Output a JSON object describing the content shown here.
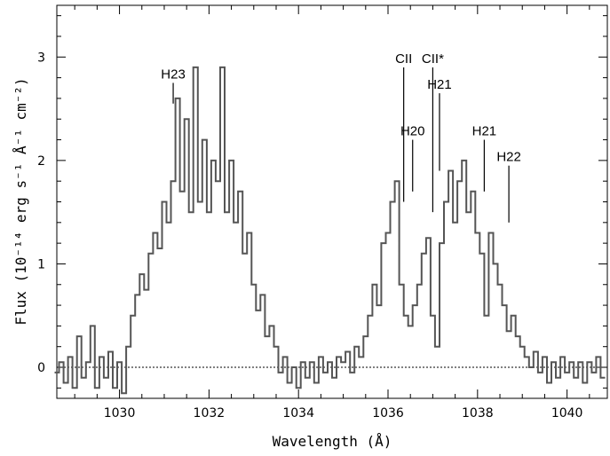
{
  "chart_data": {
    "type": "line",
    "title": "",
    "xlabel": "Wavelength (Å)",
    "ylabel": "Flux (10⁻¹⁴ erg s⁻¹ Å⁻¹ cm⁻²)",
    "xlim": [
      1028.6,
      1040.9
    ],
    "ylim": [
      -0.3,
      3.5
    ],
    "x_ticks": [
      1030,
      1032,
      1034,
      1036,
      1038,
      1040
    ],
    "y_ticks": [
      0,
      1,
      2,
      3
    ],
    "zero_line": 0,
    "grid": false,
    "series": [
      {
        "style": "histogram-step",
        "points": [
          [
            1028.6,
            -0.05
          ],
          [
            1028.7,
            0.05
          ],
          [
            1028.8,
            -0.15
          ],
          [
            1028.9,
            0.1
          ],
          [
            1029.0,
            -0.2
          ],
          [
            1029.1,
            0.3
          ],
          [
            1029.2,
            -0.1
          ],
          [
            1029.3,
            0.05
          ],
          [
            1029.4,
            0.4
          ],
          [
            1029.5,
            -0.2
          ],
          [
            1029.6,
            0.1
          ],
          [
            1029.7,
            -0.1
          ],
          [
            1029.8,
            0.15
          ],
          [
            1029.9,
            -0.2
          ],
          [
            1030.0,
            0.05
          ],
          [
            1030.1,
            -0.25
          ],
          [
            1030.2,
            0.2
          ],
          [
            1030.3,
            0.5
          ],
          [
            1030.4,
            0.7
          ],
          [
            1030.5,
            0.9
          ],
          [
            1030.6,
            0.75
          ],
          [
            1030.7,
            1.1
          ],
          [
            1030.8,
            1.3
          ],
          [
            1030.9,
            1.15
          ],
          [
            1031.0,
            1.6
          ],
          [
            1031.1,
            1.4
          ],
          [
            1031.2,
            1.8
          ],
          [
            1031.3,
            2.6
          ],
          [
            1031.4,
            1.7
          ],
          [
            1031.5,
            2.4
          ],
          [
            1031.6,
            1.5
          ],
          [
            1031.7,
            2.9
          ],
          [
            1031.8,
            1.6
          ],
          [
            1031.9,
            2.2
          ],
          [
            1032.0,
            1.5
          ],
          [
            1032.1,
            2.0
          ],
          [
            1032.2,
            1.8
          ],
          [
            1032.3,
            2.9
          ],
          [
            1032.4,
            1.5
          ],
          [
            1032.5,
            2.0
          ],
          [
            1032.6,
            1.4
          ],
          [
            1032.7,
            1.7
          ],
          [
            1032.8,
            1.1
          ],
          [
            1032.9,
            1.3
          ],
          [
            1033.0,
            0.8
          ],
          [
            1033.1,
            0.55
          ],
          [
            1033.2,
            0.7
          ],
          [
            1033.3,
            0.3
          ],
          [
            1033.4,
            0.4
          ],
          [
            1033.5,
            0.2
          ],
          [
            1033.6,
            -0.05
          ],
          [
            1033.7,
            0.1
          ],
          [
            1033.8,
            -0.15
          ],
          [
            1033.9,
            0.0
          ],
          [
            1034.0,
            -0.2
          ],
          [
            1034.1,
            0.05
          ],
          [
            1034.2,
            -0.1
          ],
          [
            1034.3,
            0.05
          ],
          [
            1034.4,
            -0.15
          ],
          [
            1034.5,
            0.1
          ],
          [
            1034.6,
            -0.05
          ],
          [
            1034.7,
            0.05
          ],
          [
            1034.8,
            -0.1
          ],
          [
            1034.9,
            0.1
          ],
          [
            1035.0,
            0.05
          ],
          [
            1035.1,
            0.15
          ],
          [
            1035.2,
            -0.05
          ],
          [
            1035.3,
            0.2
          ],
          [
            1035.4,
            0.1
          ],
          [
            1035.5,
            0.3
          ],
          [
            1035.6,
            0.5
          ],
          [
            1035.7,
            0.8
          ],
          [
            1035.8,
            0.6
          ],
          [
            1035.9,
            1.2
          ],
          [
            1036.0,
            1.3
          ],
          [
            1036.1,
            1.6
          ],
          [
            1036.2,
            1.8
          ],
          [
            1036.3,
            0.8
          ],
          [
            1036.4,
            0.5
          ],
          [
            1036.5,
            0.4
          ],
          [
            1036.6,
            0.6
          ],
          [
            1036.7,
            0.8
          ],
          [
            1036.8,
            1.1
          ],
          [
            1036.9,
            1.25
          ],
          [
            1037.0,
            0.5
          ],
          [
            1037.1,
            0.2
          ],
          [
            1037.2,
            1.2
          ],
          [
            1037.3,
            1.6
          ],
          [
            1037.4,
            1.9
          ],
          [
            1037.5,
            1.4
          ],
          [
            1037.6,
            1.8
          ],
          [
            1037.7,
            2.0
          ],
          [
            1037.8,
            1.5
          ],
          [
            1037.9,
            1.7
          ],
          [
            1038.0,
            1.3
          ],
          [
            1038.1,
            1.1
          ],
          [
            1038.2,
            0.5
          ],
          [
            1038.3,
            1.3
          ],
          [
            1038.4,
            1.0
          ],
          [
            1038.5,
            0.8
          ],
          [
            1038.6,
            0.6
          ],
          [
            1038.7,
            0.35
          ],
          [
            1038.8,
            0.5
          ],
          [
            1038.9,
            0.3
          ],
          [
            1039.0,
            0.2
          ],
          [
            1039.1,
            0.1
          ],
          [
            1039.2,
            0.0
          ],
          [
            1039.3,
            0.15
          ],
          [
            1039.4,
            -0.05
          ],
          [
            1039.5,
            0.1
          ],
          [
            1039.6,
            -0.15
          ],
          [
            1039.7,
            0.05
          ],
          [
            1039.8,
            -0.1
          ],
          [
            1039.9,
            0.1
          ],
          [
            1040.0,
            -0.05
          ],
          [
            1040.1,
            0.05
          ],
          [
            1040.2,
            -0.1
          ],
          [
            1040.3,
            0.05
          ],
          [
            1040.4,
            -0.15
          ],
          [
            1040.5,
            0.05
          ],
          [
            1040.6,
            -0.05
          ],
          [
            1040.7,
            0.1
          ],
          [
            1040.8,
            -0.1
          ]
        ]
      }
    ],
    "annotations": [
      {
        "label": "H23",
        "x": 1031.2,
        "tick_top": 2.75,
        "tick_bottom": 2.55
      },
      {
        "label": "CII",
        "x": 1036.35,
        "tick_top": 2.9,
        "tick_bottom": 1.6
      },
      {
        "label": "CII*",
        "x": 1037.0,
        "tick_top": 2.9,
        "tick_bottom": 1.5
      },
      {
        "label": "H20",
        "x": 1036.55,
        "tick_top": 2.2,
        "tick_bottom": 1.7
      },
      {
        "label": "H21",
        "x": 1037.15,
        "tick_top": 2.65,
        "tick_bottom": 1.9
      },
      {
        "label": "H21",
        "x": 1038.15,
        "tick_top": 2.2,
        "tick_bottom": 1.7
      },
      {
        "label": "H22",
        "x": 1038.7,
        "tick_top": 1.95,
        "tick_bottom": 1.4
      }
    ]
  }
}
